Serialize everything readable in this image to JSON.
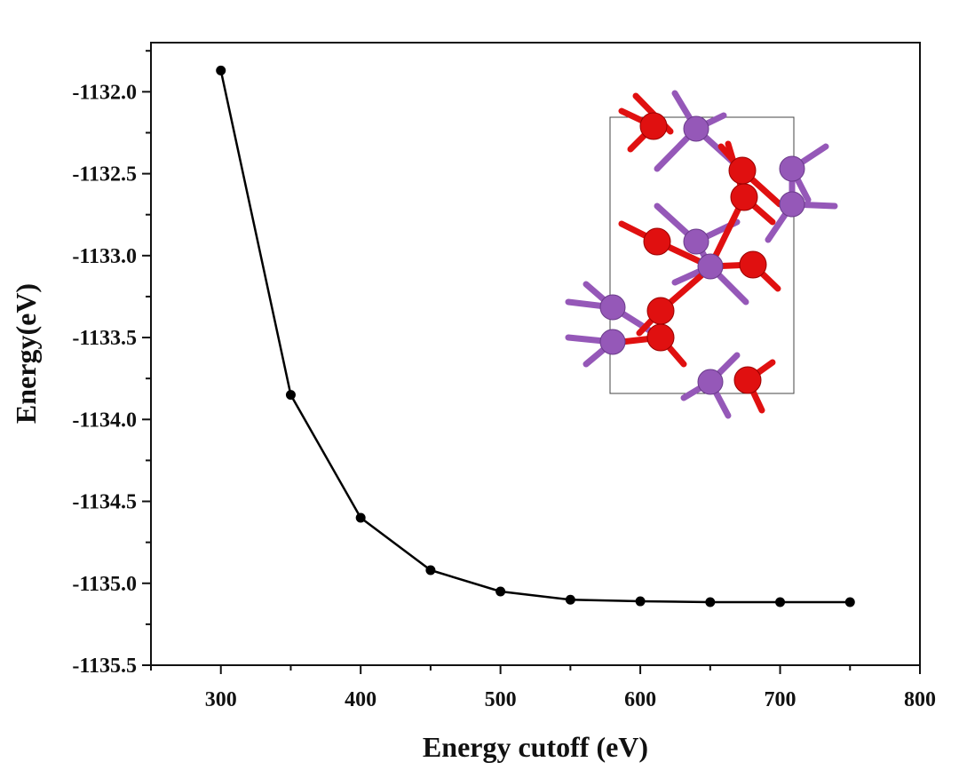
{
  "chart_data": {
    "type": "line",
    "title": "",
    "xlabel": "Energy cutoff (eV)",
    "ylabel": "Energy(eV)",
    "xlim": [
      250,
      800
    ],
    "ylim": [
      -1135.5,
      -1131.7
    ],
    "x_ticks": [
      300,
      400,
      500,
      600,
      700,
      800
    ],
    "x_tick_labels": [
      "300",
      "400",
      "500",
      "600",
      "700",
      "800"
    ],
    "y_ticks": [
      -1132.0,
      -1132.5,
      -1133.0,
      -1133.5,
      -1134.0,
      -1134.5,
      -1135.0,
      -1135.5
    ],
    "y_tick_labels": [
      "-1132.0",
      "-1132.5",
      "-1133.0",
      "-1133.5",
      "-1134.0",
      "-1134.5",
      "-1135.0",
      "-1135.5"
    ],
    "grid": false,
    "legend": "none",
    "series": [
      {
        "x": [
          300,
          350,
          400,
          450,
          500,
          550,
          600,
          650,
          700,
          750
        ],
        "y": [
          -1131.87,
          -1133.85,
          -1134.6,
          -1134.92,
          -1135.05,
          -1135.1,
          -1135.11,
          -1135.115,
          -1135.115,
          -1135.115
        ],
        "color": "#000000",
        "marker": "circle"
      }
    ],
    "inset": {
      "type": "crystal-structure",
      "atom_colors": {
        "red": "#e01010",
        "purple": "#9558b8"
      }
    }
  }
}
